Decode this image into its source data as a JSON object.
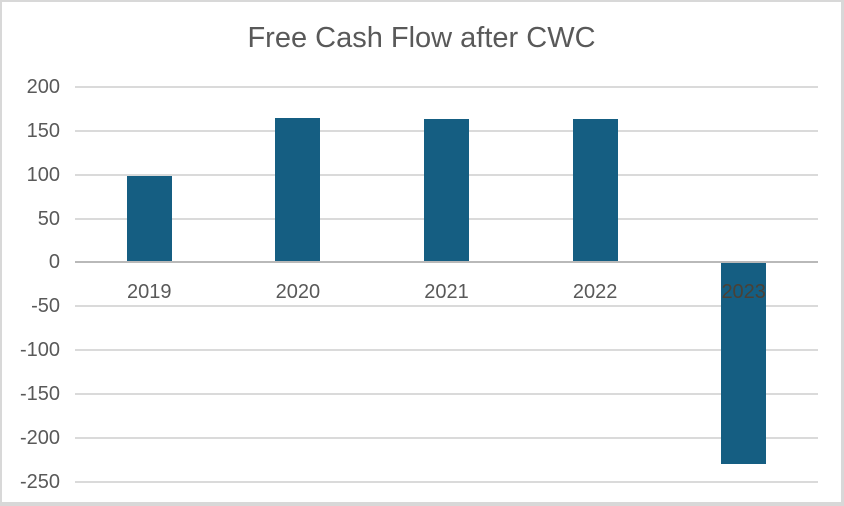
{
  "chart_data": {
    "type": "bar",
    "title": "Free Cash Flow after CWC",
    "categories": [
      "2019",
      "2020",
      "2021",
      "2022",
      "2023"
    ],
    "values": [
      98,
      165,
      163,
      163,
      -230
    ],
    "yticks": [
      200,
      150,
      100,
      50,
      0,
      -50,
      -100,
      -150,
      -200,
      -250
    ],
    "ylim": [
      -250,
      200
    ],
    "xlabel": "",
    "ylabel": "",
    "legend": "none",
    "grid": true,
    "colors": {
      "bar": "#155E82",
      "title_text": "#595959",
      "axis_text": "#595959",
      "gridline": "#DADADA",
      "axis_line": "#B9B9B9",
      "frame_border": "#D8D8D8",
      "background": "#FFFFFF",
      "label_on_bar_text": "#4A4136"
    }
  }
}
